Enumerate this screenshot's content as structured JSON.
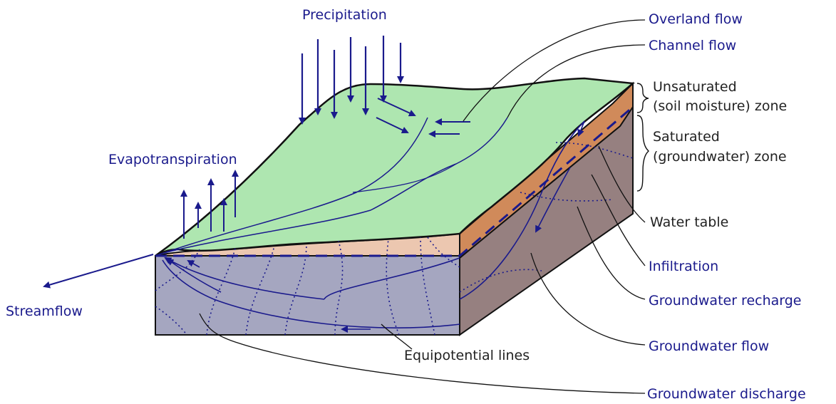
{
  "labels": {
    "precipitation": "Precipitation",
    "evapotranspiration": "Evapotranspiration",
    "streamflow": "Streamflow",
    "overland_flow": "Overland flow",
    "channel_flow": "Channel flow",
    "unsaturated_line1": "Unsaturated",
    "unsaturated_line2": "(soil moisture) zone",
    "saturated_line1": "Saturated",
    "saturated_line2": "(groundwater) zone",
    "water_table": "Water table",
    "infiltration": "Infiltration",
    "groundwater_recharge": "Groundwater recharge",
    "groundwater_flow": "Groundwater flow",
    "groundwater_discharge": "Groundwater discharge",
    "equipotential_lines": "Equipotential lines"
  },
  "colors": {
    "flow_label": "#1a1a8c",
    "zone_label": "#222222",
    "land_surface": "#aee6b0",
    "unsaturated_front": "#ecc7b0",
    "unsaturated_side": "#d08a5a",
    "saturated_front": "#a5a6c0",
    "saturated_side": "#968080",
    "arrow": "#1a1a8c"
  }
}
